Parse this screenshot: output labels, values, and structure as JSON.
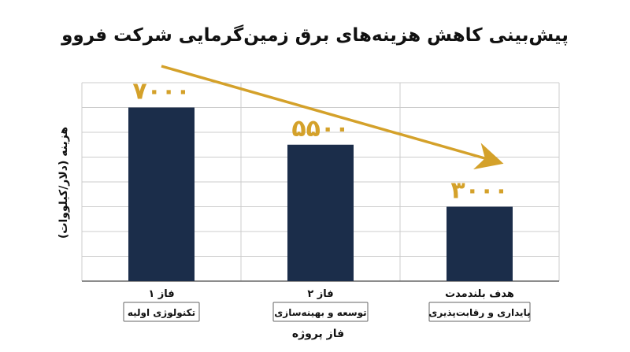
{
  "colors": {
    "bar": "#1b2d4a",
    "accent": "#d4a12a",
    "grid": "#cccccc",
    "axis": "#666666"
  },
  "chart_data": {
    "type": "bar",
    "title": "پیش‌بینی کاهش هزینه‌های برق زمین‌گرمایی شرکت فروو",
    "ylabel": "هزینه (دلار/کیلووات)",
    "xlabel": "فاز پروژه",
    "categories": [
      "فاز ۱",
      "فاز ۲",
      "هدف بلندمدت"
    ],
    "subcategories": [
      "تکنولوژی اولیه",
      "توسعه و بهینه‌سازی",
      "پایداری و رقابت‌پذیری"
    ],
    "values": [
      7000,
      5500,
      3000
    ],
    "value_labels": [
      "۷۰۰۰",
      "۵۵۰۰",
      "۳۰۰۰"
    ],
    "ylim": [
      0,
      8000
    ],
    "grid": true,
    "trend_arrow": true
  }
}
